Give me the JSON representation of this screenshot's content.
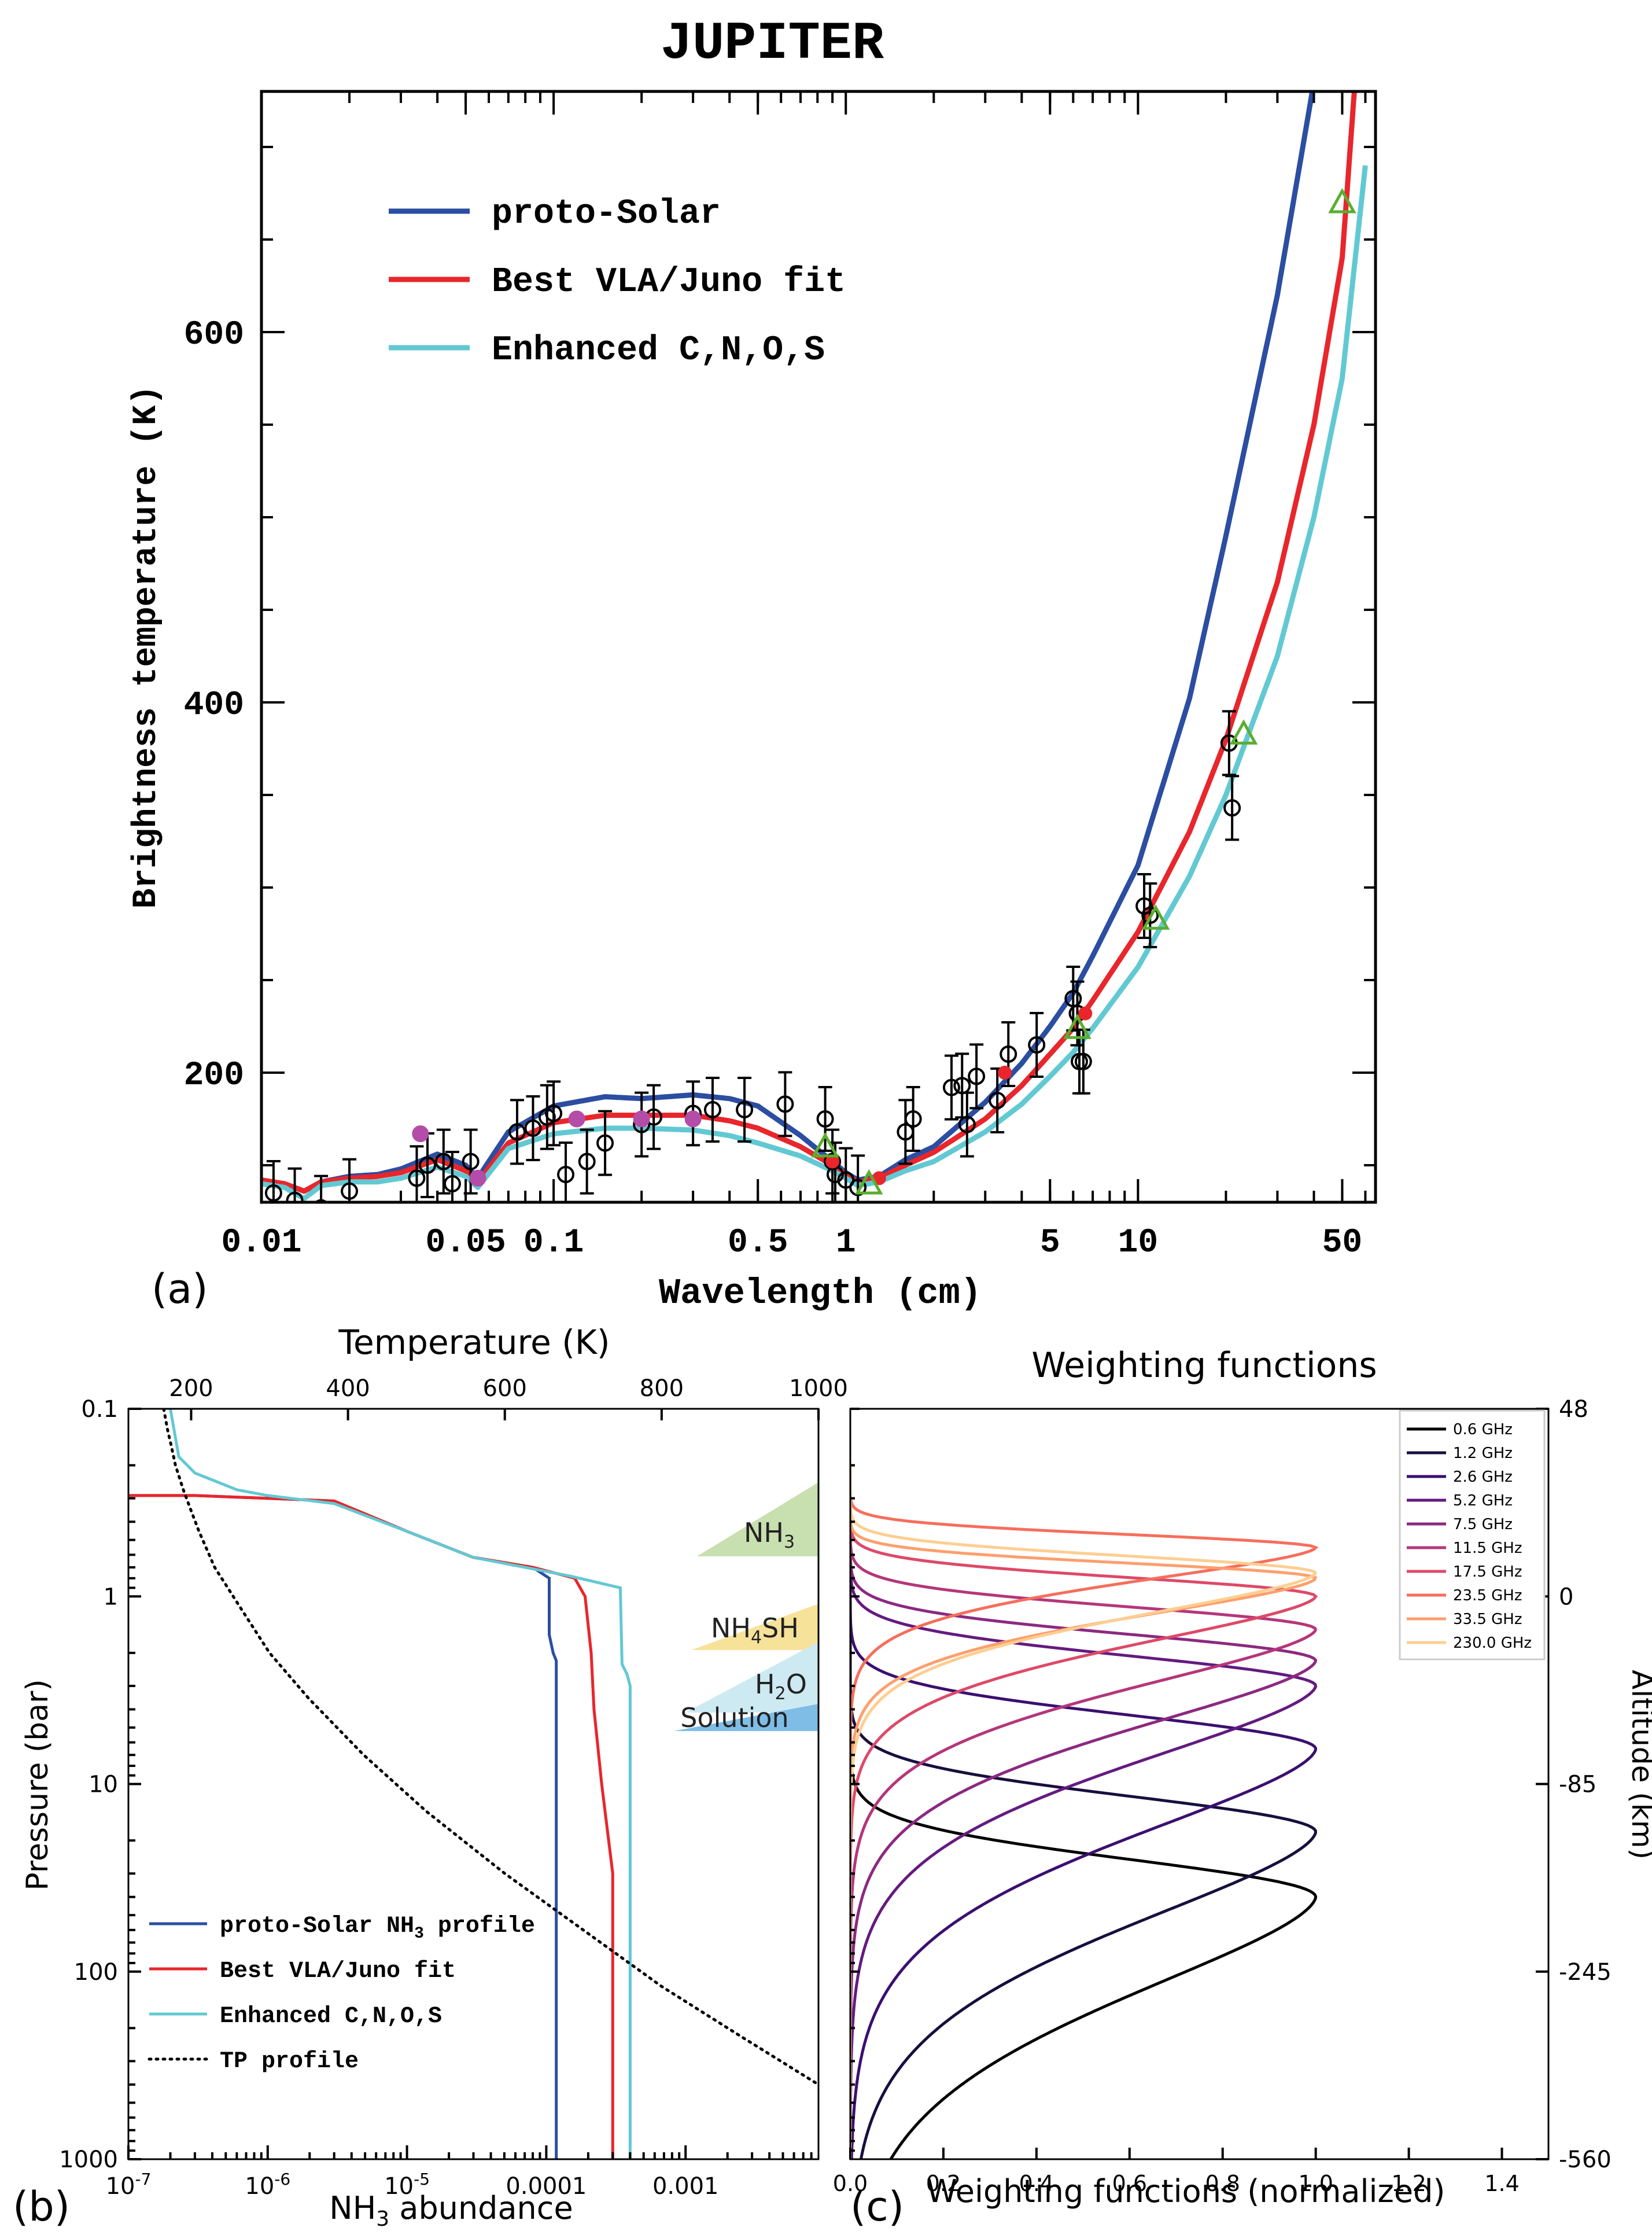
{
  "chart_data": [
    {
      "panel_label": "(a)",
      "type": "line",
      "title": "JUPITER",
      "xlabel": "Wavelength (cm)",
      "ylabel": "Brightness temperature (K)",
      "xscale": "log",
      "xlim": [
        0.01,
        65
      ],
      "ylim": [
        130,
        730
      ],
      "xticklabels": [
        "0.01",
        "0.05",
        "0.1",
        "0.5",
        "1",
        "5",
        "10",
        "50"
      ],
      "xtickvalues": [
        0.01,
        0.05,
        0.1,
        0.5,
        1,
        5,
        10,
        50
      ],
      "yticklabels": [
        "200",
        "400",
        "600"
      ],
      "ytickvalues": [
        200,
        400,
        600
      ],
      "legend_position": "top-left",
      "series": [
        {
          "name": "proto-Solar",
          "color": "#2b4ea2",
          "x": [
            0.01,
            0.012,
            0.014,
            0.016,
            0.02,
            0.025,
            0.03,
            0.04,
            0.05,
            0.055,
            0.07,
            0.1,
            0.15,
            0.2,
            0.3,
            0.4,
            0.5,
            0.7,
            0.9,
            1.0,
            1.1,
            1.3,
            1.6,
            2,
            3,
            4,
            5,
            6,
            7,
            10,
            15,
            20,
            30,
            40
          ],
          "y": [
            142,
            140,
            136,
            141,
            144,
            145,
            148,
            156,
            150,
            143,
            168,
            182,
            187,
            186,
            188,
            186,
            182,
            166,
            152,
            146,
            142,
            144,
            153,
            160,
            184,
            205,
            225,
            243,
            263,
            312,
            402,
            490,
            620,
            735
          ]
        },
        {
          "name": "Best VLA/Juno fit",
          "color": "#e8262b",
          "x": [
            0.01,
            0.012,
            0.014,
            0.016,
            0.02,
            0.025,
            0.03,
            0.04,
            0.05,
            0.055,
            0.07,
            0.1,
            0.15,
            0.2,
            0.3,
            0.4,
            0.5,
            0.7,
            0.9,
            1.0,
            1.1,
            1.3,
            1.6,
            2,
            3,
            4,
            5,
            6,
            7,
            10,
            15,
            20,
            30,
            40,
            50,
            55
          ],
          "y": [
            142,
            140,
            136,
            141,
            143,
            144,
            146,
            153,
            147,
            141,
            162,
            173,
            177,
            177,
            177,
            174,
            170,
            160,
            150,
            145,
            141,
            143,
            150,
            157,
            175,
            193,
            210,
            224,
            239,
            276,
            330,
            380,
            465,
            550,
            640,
            730
          ]
        },
        {
          "name": "Enhanced C,N,O,S",
          "color": "#62c9d3",
          "x": [
            0.01,
            0.012,
            0.014,
            0.016,
            0.02,
            0.025,
            0.03,
            0.04,
            0.05,
            0.055,
            0.07,
            0.1,
            0.15,
            0.2,
            0.3,
            0.4,
            0.5,
            0.7,
            0.9,
            1.0,
            1.1,
            1.3,
            1.6,
            2,
            3,
            4,
            5,
            6,
            7,
            10,
            15,
            20,
            30,
            40,
            50,
            60
          ],
          "y": [
            140,
            138,
            132,
            139,
            141,
            141,
            143,
            149,
            144,
            138,
            159,
            167,
            170,
            170,
            169,
            166,
            162,
            155,
            147,
            143,
            139,
            141,
            147,
            152,
            168,
            183,
            198,
            211,
            224,
            257,
            306,
            350,
            425,
            500,
            575,
            690
          ]
        }
      ],
      "observations": {
        "black_circles": [
          [
            0.011,
            135
          ],
          [
            0.013,
            131
          ],
          [
            0.016,
            127
          ],
          [
            0.02,
            136
          ],
          [
            0.034,
            143
          ],
          [
            0.037,
            150
          ],
          [
            0.042,
            152
          ],
          [
            0.045,
            140
          ],
          [
            0.052,
            152
          ],
          [
            0.075,
            168
          ],
          [
            0.085,
            170
          ],
          [
            0.095,
            176
          ],
          [
            0.1,
            178
          ],
          [
            0.11,
            145
          ],
          [
            0.13,
            152
          ],
          [
            0.15,
            162
          ],
          [
            0.2,
            172
          ],
          [
            0.22,
            176
          ],
          [
            0.3,
            178
          ],
          [
            0.35,
            180
          ],
          [
            0.45,
            180
          ],
          [
            0.62,
            183
          ],
          [
            0.85,
            175
          ],
          [
            0.9,
            152
          ],
          [
            0.92,
            145
          ],
          [
            1.0,
            142
          ],
          [
            1.1,
            138
          ],
          [
            1.6,
            168
          ],
          [
            1.7,
            175
          ],
          [
            2.3,
            192
          ],
          [
            2.5,
            193
          ],
          [
            2.6,
            172
          ],
          [
            2.8,
            198
          ],
          [
            3.3,
            185
          ],
          [
            3.6,
            210
          ],
          [
            4.5,
            215
          ],
          [
            6.0,
            240
          ],
          [
            6.2,
            232
          ],
          [
            6.3,
            206
          ],
          [
            6.5,
            206
          ],
          [
            10.5,
            290
          ],
          [
            11.0,
            285
          ],
          [
            20.5,
            378
          ],
          [
            21.0,
            343
          ]
        ],
        "green_triangles": [
          [
            0.85,
            160
          ],
          [
            1.2,
            140
          ],
          [
            6.2,
            224
          ],
          [
            11.5,
            283
          ],
          [
            23.0,
            383
          ],
          [
            50.0,
            670
          ]
        ],
        "magenta_circles": [
          [
            0.035,
            167
          ],
          [
            0.055,
            143
          ],
          [
            0.12,
            175
          ],
          [
            0.2,
            175
          ],
          [
            0.3,
            175
          ]
        ],
        "red_points": [
          [
            0.9,
            152
          ],
          [
            1.3,
            143
          ],
          [
            3.5,
            200
          ],
          [
            6.6,
            232
          ]
        ]
      }
    },
    {
      "panel_label": "(b)",
      "type": "line",
      "xlabel": "NH3 abundance",
      "xlabel_main": "NH",
      "xlabel_sub": "3",
      "xlabel_tail": " abundance",
      "top_xlabel": "Temperature (K)",
      "ylabel": "Pressure (bar)",
      "xscale": "log",
      "yscale": "log",
      "xlim": [
        1e-07,
        0.009
      ],
      "ylim": [
        1000,
        0.1
      ],
      "xticklabels": [
        "10-7",
        "10-6",
        "10-5",
        "0.0001",
        "0.001"
      ],
      "xtickvalues": [
        1e-07,
        1e-06,
        1e-05,
        0.0001,
        0.001
      ],
      "top_xlim": [
        120,
        1000
      ],
      "top_xticklabels": [
        "200",
        "400",
        "600",
        "800",
        "1000"
      ],
      "top_xtickvalues": [
        200,
        400,
        600,
        800,
        1000
      ],
      "yticklabels": [
        "0.1",
        "1",
        "10",
        "100",
        "1000"
      ],
      "ytickvalues": [
        0.1,
        1,
        10,
        100,
        1000
      ],
      "legend_position": "bottom-left",
      "series": [
        {
          "name": "proto-Solar NH3 profile",
          "label_main": "proto-Solar NH",
          "label_sub": "3",
          "label_tail": " profile",
          "color": "#2b4ea2",
          "abundance": [
            1e-07,
            3e-07,
            1e-06,
            3e-06,
            1e-05,
            3e-05,
            8e-05,
            0.000105,
            0.000105,
            0.000112,
            0.000118,
            0.000118,
            0.000118
          ],
          "pressure": [
            0.29,
            0.29,
            0.3,
            0.31,
            0.45,
            0.62,
            0.7,
            0.8,
            1.6,
            2.0,
            2.2,
            5,
            1000
          ]
        },
        {
          "name": "Best VLA/Juno fit",
          "color": "#e8262b",
          "abundance": [
            1e-07,
            3e-07,
            1e-06,
            3e-06,
            1e-05,
            3e-05,
            8e-05,
            0.00016,
            0.00019,
            0.00021,
            0.00022,
            0.00025,
            0.0003,
            0.0003
          ],
          "pressure": [
            0.29,
            0.29,
            0.3,
            0.31,
            0.45,
            0.62,
            0.7,
            0.8,
            1.0,
            2.0,
            4.0,
            10,
            30,
            1000
          ]
        },
        {
          "name": "Enhanced C,N,O,S",
          "color": "#62c9d3",
          "abundance": [
            2e-07,
            2.3e-07,
            3e-07,
            6e-07,
            1e-06,
            3e-06,
            1e-05,
            3e-05,
            0.00015,
            0.00034,
            0.00035,
            0.00038,
            0.0004,
            0.0004
          ],
          "pressure": [
            0.1,
            0.18,
            0.22,
            0.27,
            0.29,
            0.32,
            0.45,
            0.62,
            0.78,
            0.9,
            2.3,
            2.6,
            3.0,
            1000
          ]
        },
        {
          "name": "TP profile",
          "color": "#000000",
          "style": "dotted",
          "temperature_K": [
            165,
            170,
            175,
            180,
            190,
            200,
            210,
            230,
            260,
            300,
            350,
            420,
            500,
            600,
            700,
            800,
            900,
            1000
          ],
          "pressure": [
            0.1,
            0.13,
            0.16,
            0.2,
            0.27,
            0.35,
            0.45,
            0.7,
            1.1,
            2,
            3.5,
            7,
            14,
            30,
            60,
            120,
            220,
            400
          ]
        }
      ],
      "cloud_layers": [
        {
          "label": "NH3",
          "label_main": "NH",
          "label_sub": "3",
          "label_tail": "",
          "color": "#c8dfb0"
        },
        {
          "label": "NH4SH",
          "label_main": "NH",
          "label_sub": "4",
          "label_tail": "SH",
          "color": "#f7e29a"
        },
        {
          "label": "H2O",
          "label_main": "H",
          "label_sub": "2",
          "label_tail": "O",
          "color": "#cdeaf3"
        },
        {
          "label": "Solution",
          "label_main": "Solution",
          "label_sub": "",
          "label_tail": "",
          "color": "#7fbde6"
        }
      ]
    },
    {
      "panel_label": "(c)",
      "type": "line",
      "title": "Weighting functions",
      "xlabel": "Weighting functions (normalized)",
      "ylabel_right": "Altitude (km)",
      "xlim": [
        0,
        1.5
      ],
      "xticklabels": [
        "0.0",
        "0.2",
        "0.4",
        "0.6",
        "0.8",
        "1.0",
        "1.2",
        "1.4"
      ],
      "xtickvalues": [
        0,
        0.2,
        0.4,
        0.6,
        0.8,
        1.0,
        1.2,
        1.4
      ],
      "yticklabels_right": [
        "48",
        "0",
        "-85",
        "-245",
        "-560"
      ],
      "legend_position": "top-right",
      "series": [
        {
          "name": "0.6 GHz",
          "color": "#000004",
          "peak_pressure_bar": 40,
          "width": 1.0
        },
        {
          "name": "1.2 GHz",
          "color": "#180f3e",
          "peak_pressure_bar": 18,
          "width": 0.95
        },
        {
          "name": "2.6 GHz",
          "color": "#3b0f70",
          "peak_pressure_bar": 6.5,
          "width": 0.9
        },
        {
          "name": "5.2 GHz",
          "color": "#641a80",
          "peak_pressure_bar": 3.0,
          "width": 0.8
        },
        {
          "name": "7.5 GHz",
          "color": "#8c2981",
          "peak_pressure_bar": 2.2,
          "width": 0.7
        },
        {
          "name": "11.5 GHz",
          "color": "#b5367a",
          "peak_pressure_bar": 1.5,
          "width": 0.6
        },
        {
          "name": "17.5 GHz",
          "color": "#de4968",
          "peak_pressure_bar": 1.0,
          "width": 0.5
        },
        {
          "name": "23.5 GHz",
          "color": "#f66e5c",
          "peak_pressure_bar": 0.55,
          "width": 0.35
        },
        {
          "name": "33.5 GHz",
          "color": "#fe9f6d",
          "peak_pressure_bar": 0.8,
          "width": 0.4
        },
        {
          "name": "230.0 GHz",
          "color": "#fece91",
          "peak_pressure_bar": 0.75,
          "width": 0.45
        }
      ]
    }
  ]
}
